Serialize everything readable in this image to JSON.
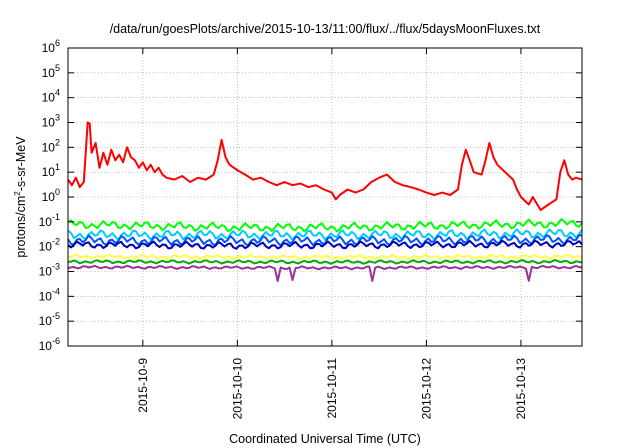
{
  "chart_data": {
    "type": "line",
    "title": "/data/run/goesPlots/archive/2015-10-13/11:00/flux/../flux/5daysMoonFluxes.txt",
    "xlabel": "Coordinated Universal Time (UTC)",
    "ylabel": "protons/cm²-s-sr-MeV",
    "ylabel_parts": {
      "pre": "protons/cm",
      "sup": "2",
      "post": "-s-sr-MeV"
    },
    "yscale": "log",
    "ylim": [
      1e-06,
      1000000.0
    ],
    "xlim": [
      "2015-10-08T05:00",
      "2015-10-13T15:30"
    ],
    "grid": true,
    "x_ticks": [
      "2015-10-9",
      "2015-10-10",
      "2015-10-11",
      "2015-10-12",
      "2015-10-13"
    ],
    "y_ticks": [
      {
        "base": "10",
        "exp": "-6"
      },
      {
        "base": "10",
        "exp": "-5"
      },
      {
        "base": "10",
        "exp": "-4"
      },
      {
        "base": "10",
        "exp": "-3"
      },
      {
        "base": "10",
        "exp": "-2"
      },
      {
        "base": "10",
        "exp": "-1"
      },
      {
        "base": "10",
        "exp": "0"
      },
      {
        "base": "10",
        "exp": "1"
      },
      {
        "base": "10",
        "exp": "2"
      },
      {
        "base": "10",
        "exp": "3"
      },
      {
        "base": "10",
        "exp": "4"
      },
      {
        "base": "10",
        "exp": "5"
      },
      {
        "base": "10",
        "exp": "6"
      }
    ],
    "series": [
      {
        "color": "#ff0000",
        "points": [
          [
            "2015-10-08T05:00",
            5
          ],
          [
            "2015-10-08T06:00",
            3
          ],
          [
            "2015-10-08T07:00",
            6
          ],
          [
            "2015-10-08T08:00",
            2.5
          ],
          [
            "2015-10-08T09:00",
            4
          ],
          [
            "2015-10-08T10:00",
            1000
          ],
          [
            "2015-10-08T10:30",
            900
          ],
          [
            "2015-10-08T11:00",
            60
          ],
          [
            "2015-10-08T12:00",
            150
          ],
          [
            "2015-10-08T13:00",
            15
          ],
          [
            "2015-10-08T14:00",
            60
          ],
          [
            "2015-10-08T15:00",
            20
          ],
          [
            "2015-10-08T16:00",
            80
          ],
          [
            "2015-10-08T17:00",
            30
          ],
          [
            "2015-10-08T18:00",
            50
          ],
          [
            "2015-10-08T19:00",
            25
          ],
          [
            "2015-10-08T20:00",
            100
          ],
          [
            "2015-10-08T21:00",
            40
          ],
          [
            "2015-10-08T22:00",
            30
          ],
          [
            "2015-10-08T23:00",
            15
          ],
          [
            "2015-10-09T00:00",
            25
          ],
          [
            "2015-10-09T01:00",
            12
          ],
          [
            "2015-10-09T02:00",
            20
          ],
          [
            "2015-10-09T03:00",
            10
          ],
          [
            "2015-10-09T04:00",
            15
          ],
          [
            "2015-10-09T05:00",
            8
          ],
          [
            "2015-10-09T06:00",
            6
          ],
          [
            "2015-10-09T08:00",
            5
          ],
          [
            "2015-10-09T10:00",
            7
          ],
          [
            "2015-10-09T12:00",
            4
          ],
          [
            "2015-10-09T14:00",
            6
          ],
          [
            "2015-10-09T16:00",
            5
          ],
          [
            "2015-10-09T18:00",
            8
          ],
          [
            "2015-10-09T19:00",
            30
          ],
          [
            "2015-10-09T20:00",
            200
          ],
          [
            "2015-10-09T21:00",
            40
          ],
          [
            "2015-10-09T22:00",
            20
          ],
          [
            "2015-10-10T00:00",
            12
          ],
          [
            "2015-10-10T02:00",
            8
          ],
          [
            "2015-10-10T04:00",
            5
          ],
          [
            "2015-10-10T06:00",
            6
          ],
          [
            "2015-10-10T08:00",
            4
          ],
          [
            "2015-10-10T10:00",
            3
          ],
          [
            "2015-10-10T12:00",
            4
          ],
          [
            "2015-10-10T14:00",
            3
          ],
          [
            "2015-10-10T16:00",
            3.5
          ],
          [
            "2015-10-10T18:00",
            2.5
          ],
          [
            "2015-10-10T20:00",
            3
          ],
          [
            "2015-10-10T22:00",
            2
          ],
          [
            "2015-10-11T00:00",
            1.5
          ],
          [
            "2015-10-11T01:00",
            0.8
          ],
          [
            "2015-10-11T02:00",
            1.2
          ],
          [
            "2015-10-11T04:00",
            2
          ],
          [
            "2015-10-11T06:00",
            1.5
          ],
          [
            "2015-10-11T08:00",
            2
          ],
          [
            "2015-10-11T10:00",
            4
          ],
          [
            "2015-10-11T12:00",
            6
          ],
          [
            "2015-10-11T14:00",
            8
          ],
          [
            "2015-10-11T16:00",
            4
          ],
          [
            "2015-10-11T18:00",
            3
          ],
          [
            "2015-10-11T20:00",
            2.5
          ],
          [
            "2015-10-11T22:00",
            2
          ],
          [
            "2015-10-12T00:00",
            1.5
          ],
          [
            "2015-10-12T02:00",
            1.2
          ],
          [
            "2015-10-12T04:00",
            1.5
          ],
          [
            "2015-10-12T06:00",
            1.2
          ],
          [
            "2015-10-12T08:00",
            2
          ],
          [
            "2015-10-12T09:00",
            20
          ],
          [
            "2015-10-12T10:00",
            80
          ],
          [
            "2015-10-12T11:00",
            30
          ],
          [
            "2015-10-12T12:00",
            10
          ],
          [
            "2015-10-12T14:00",
            8
          ],
          [
            "2015-10-12T15:00",
            30
          ],
          [
            "2015-10-12T16:00",
            150
          ],
          [
            "2015-10-12T17:00",
            40
          ],
          [
            "2015-10-12T18:00",
            20
          ],
          [
            "2015-10-12T20:00",
            10
          ],
          [
            "2015-10-12T22:00",
            5
          ],
          [
            "2015-10-12T23:00",
            2
          ],
          [
            "2015-10-13T00:00",
            1
          ],
          [
            "2015-10-13T02:00",
            0.5
          ],
          [
            "2015-10-13T03:00",
            1
          ],
          [
            "2015-10-13T05:00",
            0.3
          ],
          [
            "2015-10-13T07:00",
            0.5
          ],
          [
            "2015-10-13T09:00",
            0.8
          ],
          [
            "2015-10-13T10:00",
            10
          ],
          [
            "2015-10-13T11:00",
            30
          ],
          [
            "2015-10-13T12:00",
            8
          ],
          [
            "2015-10-13T13:00",
            5
          ],
          [
            "2015-10-13T14:00",
            6
          ],
          [
            "2015-10-13T15:30",
            5
          ]
        ]
      },
      {
        "color": "#00ff00",
        "base": 0.08,
        "amp": 0.18,
        "phase": 0.3,
        "points": [
          [
            "2015-10-08T05:00",
            0.08
          ],
          [
            "2015-10-09T00:00",
            0.07
          ],
          [
            "2015-10-10T00:00",
            0.06
          ],
          [
            "2015-10-11T00:00",
            0.06
          ],
          [
            "2015-10-12T00:00",
            0.07
          ],
          [
            "2015-10-13T00:00",
            0.08
          ],
          [
            "2015-10-13T15:30",
            0.09
          ]
        ]
      },
      {
        "color": "#00ccff",
        "base": 0.03,
        "amp": 0.2,
        "phase": 1.1,
        "points": [
          [
            "2015-10-08T05:00",
            0.03
          ],
          [
            "2015-10-10T00:00",
            0.03
          ],
          [
            "2015-10-12T00:00",
            0.03
          ],
          [
            "2015-10-13T15:30",
            0.035
          ]
        ]
      },
      {
        "color": "#0055ff",
        "base": 0.018,
        "amp": 0.2,
        "phase": 2.0,
        "points": [
          [
            "2015-10-08T05:00",
            0.018
          ],
          [
            "2015-10-10T00:00",
            0.017
          ],
          [
            "2015-10-12T00:00",
            0.018
          ],
          [
            "2015-10-13T15:30",
            0.02
          ]
        ]
      },
      {
        "color": "#0000bb",
        "base": 0.012,
        "amp": 0.15,
        "phase": 2.7,
        "points": [
          [
            "2015-10-08T05:00",
            0.012
          ],
          [
            "2015-10-10T00:00",
            0.011
          ],
          [
            "2015-10-12T00:00",
            0.012
          ],
          [
            "2015-10-13T15:30",
            0.013
          ]
        ]
      },
      {
        "color": "#ffff44",
        "base": 0.004,
        "amp": 0.08,
        "phase": 3.3,
        "points": [
          [
            "2015-10-08T05:00",
            0.004
          ],
          [
            "2015-10-11T00:00",
            0.0038
          ],
          [
            "2015-10-13T15:30",
            0.004
          ]
        ]
      },
      {
        "color": "#00aa00",
        "base": 0.0025,
        "amp": 0.07,
        "phase": 4.1,
        "points": [
          [
            "2015-10-08T05:00",
            0.0025
          ],
          [
            "2015-10-11T00:00",
            0.0024
          ],
          [
            "2015-10-13T15:30",
            0.0025
          ]
        ]
      },
      {
        "color": "#993399",
        "base": 0.0015,
        "amp": 0.06,
        "phase": 5.0,
        "dips": [
          "2015-10-10T10:00",
          "2015-10-10T14:00",
          "2015-10-11T10:00",
          "2015-10-13T02:00"
        ],
        "points": [
          [
            "2015-10-08T05:00",
            0.0015
          ],
          [
            "2015-10-11T00:00",
            0.0014
          ],
          [
            "2015-10-13T15:30",
            0.0015
          ]
        ]
      }
    ]
  }
}
